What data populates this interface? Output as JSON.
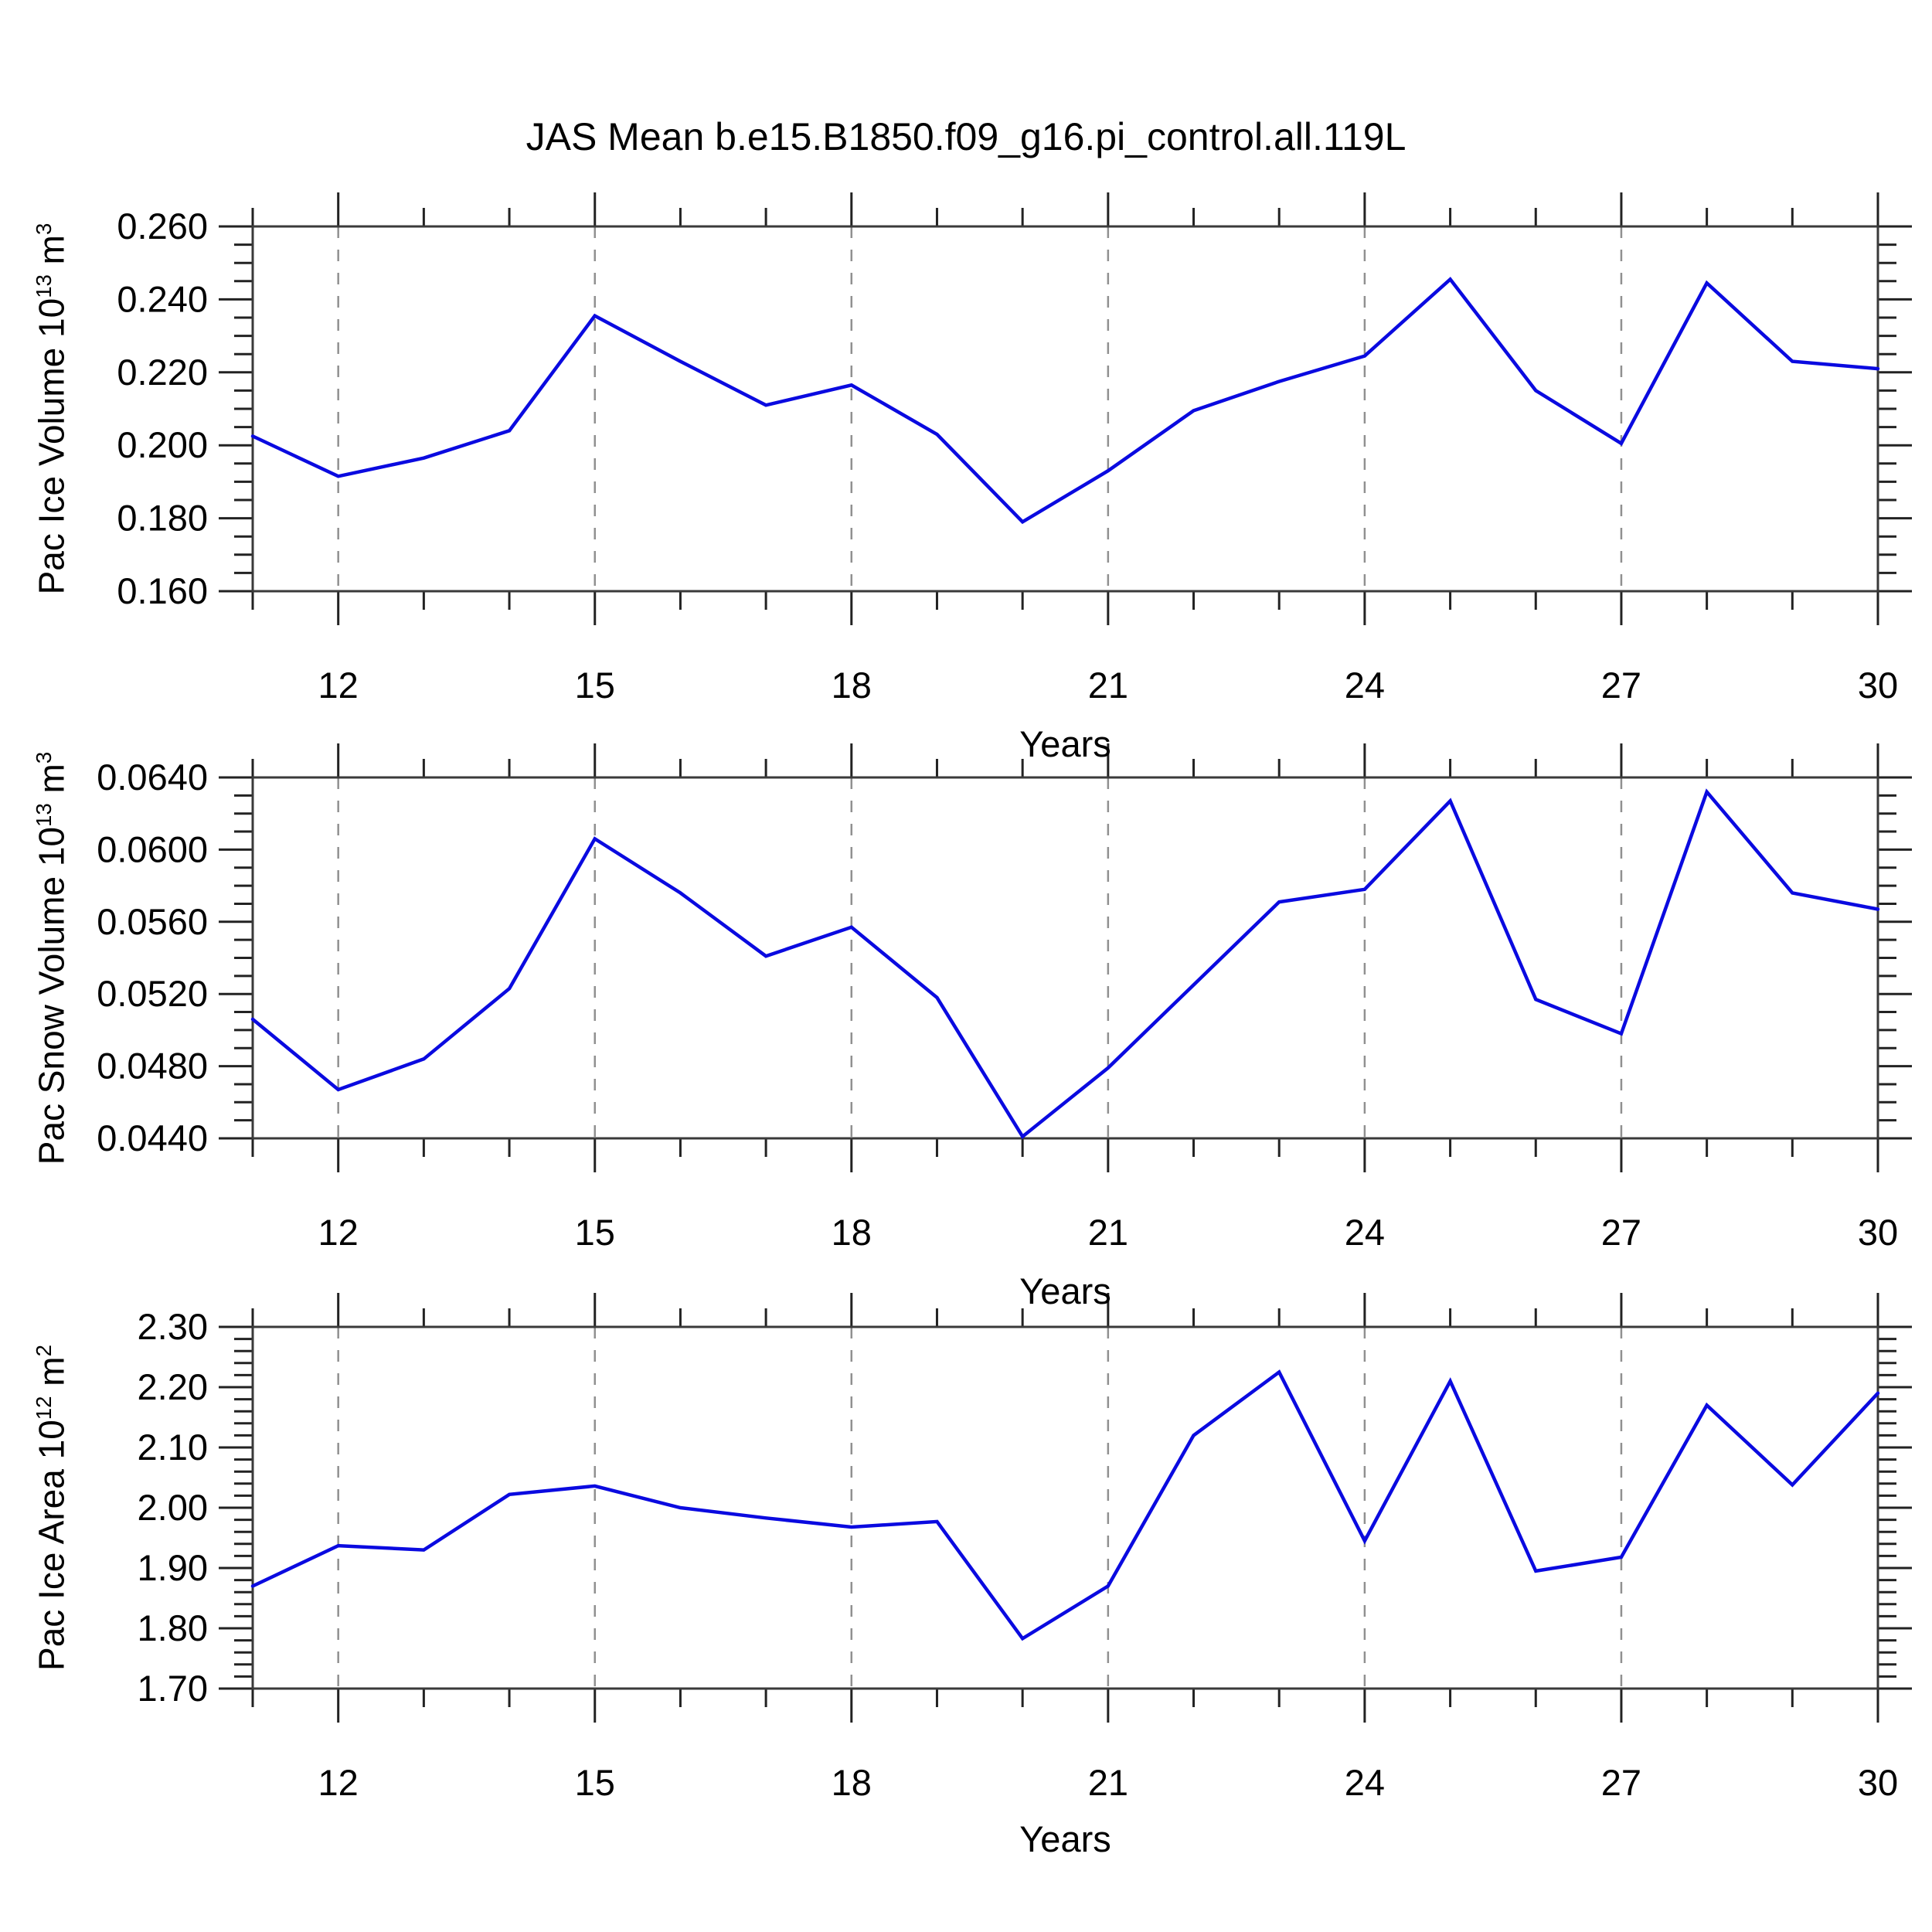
{
  "title": "JAS Mean b.e15.B1850.f09_g16.pi_control.all.119L",
  "line_color": "#0a0ae0",
  "grid_color": "#909090",
  "frame_color": "#3a3a3a",
  "chart_data": [
    {
      "type": "line",
      "series_name": "pac-ice-volume",
      "ylabel": {
        "base": "Pac Ice Volume 10",
        "exp": "13",
        "unit": " m",
        "unit_exp": "3"
      },
      "xlabel": "Years",
      "x": [
        11,
        12,
        13,
        14,
        15,
        16,
        17,
        18,
        19,
        20,
        21,
        22,
        23,
        24,
        25,
        26,
        27,
        28,
        29,
        30
      ],
      "values": [
        0.2025,
        0.1915,
        0.1965,
        0.204,
        0.2355,
        0.223,
        0.211,
        0.2165,
        0.203,
        0.179,
        0.193,
        0.2095,
        0.2175,
        0.2245,
        0.2455,
        0.215,
        0.2005,
        0.2445,
        0.223,
        0.221
      ],
      "xlim": [
        11,
        30
      ],
      "ylim": [
        0.16,
        0.26
      ],
      "xtick_values": [
        12,
        15,
        18,
        21,
        24,
        27,
        30
      ],
      "xtick_labels": [
        "12",
        "15",
        "18",
        "21",
        "24",
        "27",
        "30"
      ],
      "x_minor_step": 1,
      "ytick_values": [
        0.16,
        0.18,
        0.2,
        0.22,
        0.24,
        0.26
      ],
      "ytick_labels": [
        "0.160",
        "0.180",
        "0.200",
        "0.220",
        "0.240",
        "0.260"
      ],
      "y_minor_step": 0.005,
      "grid": "vertical-dashed",
      "legend": "none"
    },
    {
      "type": "line",
      "series_name": "pac-snow-volume",
      "ylabel": {
        "base": "Pac Snow Volume 10",
        "exp": "13",
        "unit": " m",
        "unit_exp": "3"
      },
      "xlabel": "Years",
      "x": [
        11,
        12,
        13,
        14,
        15,
        16,
        17,
        18,
        19,
        20,
        21,
        22,
        23,
        24,
        25,
        26,
        27,
        28,
        29,
        30
      ],
      "values": [
        0.0506,
        0.0467,
        0.0484,
        0.0523,
        0.0606,
        0.0576,
        0.0541,
        0.0557,
        0.0518,
        0.0441,
        0.0479,
        0.0525,
        0.0571,
        0.0578,
        0.0627,
        0.0517,
        0.0498,
        0.0632,
        0.0576,
        0.0567
      ],
      "xlim": [
        11,
        30
      ],
      "ylim": [
        0.044,
        0.064
      ],
      "xtick_values": [
        12,
        15,
        18,
        21,
        24,
        27,
        30
      ],
      "xtick_labels": [
        "12",
        "15",
        "18",
        "21",
        "24",
        "27",
        "30"
      ],
      "x_minor_step": 1,
      "ytick_values": [
        0.044,
        0.048,
        0.052,
        0.056,
        0.06,
        0.064
      ],
      "ytick_labels": [
        "0.0440",
        "0.0480",
        "0.0520",
        "0.0560",
        "0.0600",
        "0.0640"
      ],
      "y_minor_step": 0.001,
      "grid": "vertical-dashed",
      "legend": "none"
    },
    {
      "type": "line",
      "series_name": "pac-ice-area",
      "ylabel": {
        "base": "Pac Ice Area 10",
        "exp": "12",
        "unit": " m",
        "unit_exp": "2"
      },
      "xlabel": "Years",
      "x": [
        11,
        12,
        13,
        14,
        15,
        16,
        17,
        18,
        19,
        20,
        21,
        22,
        23,
        24,
        25,
        26,
        27,
        28,
        29,
        30
      ],
      "values": [
        1.87,
        1.937,
        1.93,
        2.022,
        2.036,
        2.0,
        1.983,
        1.968,
        1.977,
        1.783,
        1.87,
        2.12,
        2.225,
        1.945,
        2.21,
        1.895,
        1.918,
        2.17,
        2.038,
        2.19
      ],
      "xlim": [
        11,
        30
      ],
      "ylim": [
        1.7,
        2.3
      ],
      "xtick_values": [
        12,
        15,
        18,
        21,
        24,
        27,
        30
      ],
      "xtick_labels": [
        "12",
        "15",
        "18",
        "21",
        "24",
        "27",
        "30"
      ],
      "x_minor_step": 1,
      "ytick_values": [
        1.7,
        1.8,
        1.9,
        2.0,
        2.1,
        2.2,
        2.3
      ],
      "ytick_labels": [
        "1.70",
        "1.80",
        "1.90",
        "2.00",
        "2.10",
        "2.20",
        "2.30"
      ],
      "y_minor_step": 0.02,
      "grid": "vertical-dashed",
      "legend": "none"
    }
  ]
}
